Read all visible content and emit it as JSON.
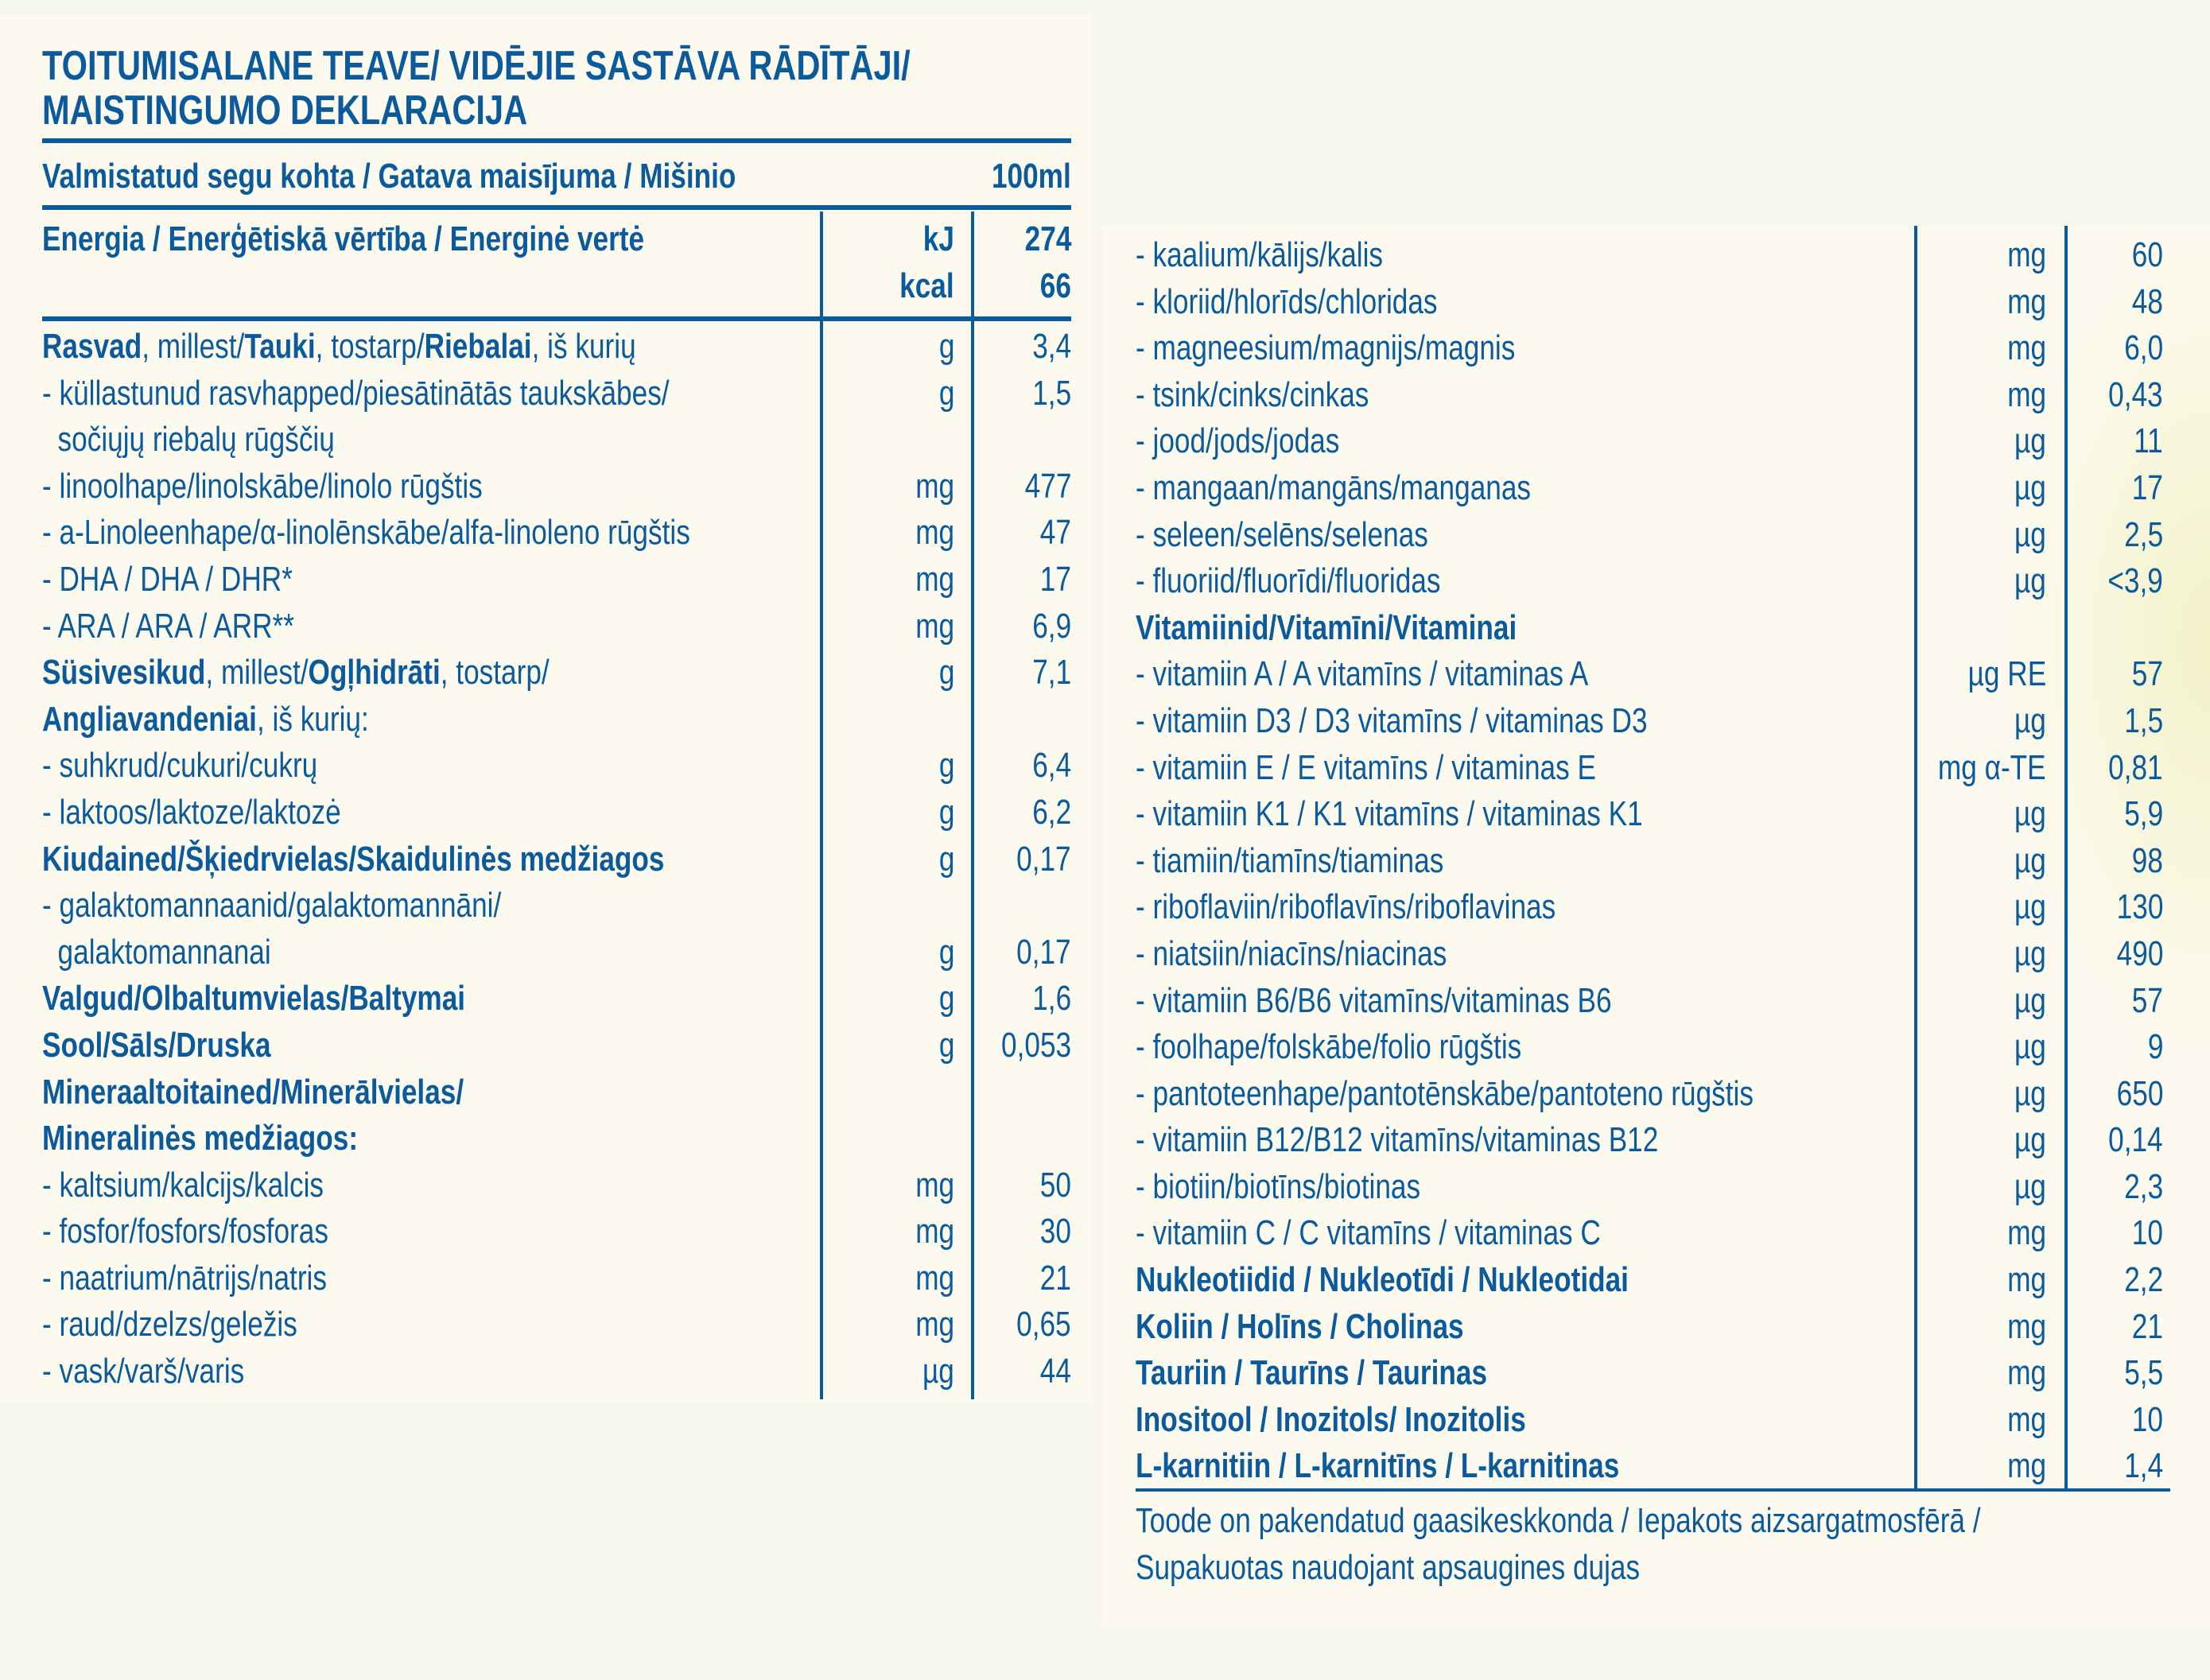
{
  "title": {
    "line1": "TOITUMISALANE TEAVE/ VIDĒJIE SASTĀVA RĀDĪTĀJI/",
    "line2": "MAISTINGUMO DEKLARACIJA"
  },
  "basis": {
    "label": "Valmistatud segu kohta / Gatava maisījuma / Mišinio",
    "value": "100ml"
  },
  "energy": {
    "label": "Energia / Enerģētiskā vērtība / Energinė vertė",
    "rows": [
      {
        "unit": "kJ",
        "value": "274"
      },
      {
        "unit": "kcal",
        "value": "66"
      }
    ]
  },
  "left_rows": [
    {
      "parts": [
        {
          "t": "Rasvad",
          "b": true
        },
        {
          "t": ", millest/"
        },
        {
          "t": "Tauki",
          "b": true
        },
        {
          "t": ", tostarp/"
        },
        {
          "t": "Riebalai",
          "b": true
        },
        {
          "t": ", iš kurių"
        }
      ],
      "unit": "g",
      "value": "3,4"
    },
    {
      "parts": [
        {
          "t": "- küllastunud rasvhapped/piesātinātās taukskābes/"
        }
      ],
      "unit": "g",
      "value": "1,5"
    },
    {
      "parts": [
        {
          "t": "  sočiųjų riebalų rūgščių"
        }
      ],
      "unit": "",
      "value": ""
    },
    {
      "parts": [
        {
          "t": "- linoolhape/linolskābe/linolo rūgštis"
        }
      ],
      "unit": "mg",
      "value": "477"
    },
    {
      "parts": [
        {
          "t": "- a-Linoleenhape/α-linolēnskābe/alfa-linoleno rūgštis"
        }
      ],
      "unit": "mg",
      "value": "47"
    },
    {
      "parts": [
        {
          "t": "- DHA / DHA / DHR*"
        }
      ],
      "unit": "mg",
      "value": "17"
    },
    {
      "parts": [
        {
          "t": "- ARA / ARA / ARR**"
        }
      ],
      "unit": "mg",
      "value": "6,9"
    },
    {
      "parts": [
        {
          "t": "Süsivesikud",
          "b": true
        },
        {
          "t": ", millest/"
        },
        {
          "t": "Ogļhidrāti",
          "b": true
        },
        {
          "t": ", tostarp/"
        }
      ],
      "unit": "g",
      "value": "7,1"
    },
    {
      "parts": [
        {
          "t": "Angliavandeniai",
          "b": true
        },
        {
          "t": ", iš kurių:"
        }
      ],
      "unit": "",
      "value": ""
    },
    {
      "parts": [
        {
          "t": "- suhkrud/cukuri/cukrų"
        }
      ],
      "unit": "g",
      "value": "6,4"
    },
    {
      "parts": [
        {
          "t": "- laktoos/laktoze/laktozė"
        }
      ],
      "unit": "g",
      "value": "6,2"
    },
    {
      "parts": [
        {
          "t": "Kiudained/Šķiedrvielas/Skaidulinės medžiagos",
          "b": true
        }
      ],
      "unit": "g",
      "value": "0,17"
    },
    {
      "parts": [
        {
          "t": "- galaktomannaanid/galaktomannāni/"
        }
      ],
      "unit": "",
      "value": ""
    },
    {
      "parts": [
        {
          "t": "  galaktomannanai"
        }
      ],
      "unit": "g",
      "value": "0,17"
    },
    {
      "parts": [
        {
          "t": "Valgud/Olbaltumvielas/Baltymai",
          "b": true
        }
      ],
      "unit": "g",
      "value": "1,6"
    },
    {
      "parts": [
        {
          "t": "Sool/Sāls/Druska",
          "b": true
        }
      ],
      "unit": "g",
      "value": "0,053"
    },
    {
      "parts": [
        {
          "t": "Mineraaltoitained/Minerālvielas/",
          "b": true
        }
      ],
      "unit": "",
      "value": ""
    },
    {
      "parts": [
        {
          "t": "Mineralinės medžiagos:",
          "b": true
        }
      ],
      "unit": "",
      "value": ""
    },
    {
      "parts": [
        {
          "t": "- kaltsium/kalcijs/kalcis"
        }
      ],
      "unit": "mg",
      "value": "50"
    },
    {
      "parts": [
        {
          "t": "- fosfor/fosfors/fosforas"
        }
      ],
      "unit": "mg",
      "value": "30"
    },
    {
      "parts": [
        {
          "t": "- naatrium/nātrijs/natris"
        }
      ],
      "unit": "mg",
      "value": "21"
    },
    {
      "parts": [
        {
          "t": "- raud/dzelzs/geležis"
        }
      ],
      "unit": "mg",
      "value": "0,65"
    },
    {
      "parts": [
        {
          "t": "- vask/varš/varis"
        }
      ],
      "unit": "µg",
      "value": "44"
    }
  ],
  "right_rows": [
    {
      "parts": [
        {
          "t": "- kaalium/kālijs/kalis"
        }
      ],
      "unit": "mg",
      "value": "60"
    },
    {
      "parts": [
        {
          "t": "- kloriid/hlorīds/chloridas"
        }
      ],
      "unit": "mg",
      "value": "48"
    },
    {
      "parts": [
        {
          "t": "- magneesium/magnijs/magnis"
        }
      ],
      "unit": "mg",
      "value": "6,0"
    },
    {
      "parts": [
        {
          "t": "- tsink/cinks/cinkas"
        }
      ],
      "unit": "mg",
      "value": "0,43"
    },
    {
      "parts": [
        {
          "t": "- jood/jods/jodas"
        }
      ],
      "unit": "µg",
      "value": "11"
    },
    {
      "parts": [
        {
          "t": "- mangaan/mangāns/manganas"
        }
      ],
      "unit": "µg",
      "value": "17"
    },
    {
      "parts": [
        {
          "t": "- seleen/selēns/selenas"
        }
      ],
      "unit": "µg",
      "value": "2,5"
    },
    {
      "parts": [
        {
          "t": "- fluoriid/fluorīdi/fluoridas"
        }
      ],
      "unit": "µg",
      "value": "<3,9"
    },
    {
      "parts": [
        {
          "t": "Vitamiinid/Vitamīni/Vitaminai",
          "b": true
        }
      ],
      "unit": "",
      "value": ""
    },
    {
      "parts": [
        {
          "t": "- vitamiin A / A vitamīns / vitaminas A"
        }
      ],
      "unit": "µg RE",
      "value": "57"
    },
    {
      "parts": [
        {
          "t": "- vitamiin D3 / D3 vitamīns / vitaminas D3"
        }
      ],
      "unit": "µg",
      "value": "1,5"
    },
    {
      "parts": [
        {
          "t": "- vitamiin E / E vitamīns / vitaminas E"
        }
      ],
      "unit": "mg α-TE",
      "value": "0,81"
    },
    {
      "parts": [
        {
          "t": "- vitamiin K1 / K1 vitamīns / vitaminas K1"
        }
      ],
      "unit": "µg",
      "value": "5,9"
    },
    {
      "parts": [
        {
          "t": "- tiamiin/tiamīns/tiaminas"
        }
      ],
      "unit": "µg",
      "value": "98"
    },
    {
      "parts": [
        {
          "t": "- riboflaviin/riboflavīns/riboflavinas"
        }
      ],
      "unit": "µg",
      "value": "130"
    },
    {
      "parts": [
        {
          "t": "- niatsiin/niacīns/niacinas"
        }
      ],
      "unit": "µg",
      "value": "490"
    },
    {
      "parts": [
        {
          "t": "- vitamiin B6/B6 vitamīns/vitaminas B6"
        }
      ],
      "unit": "µg",
      "value": "57"
    },
    {
      "parts": [
        {
          "t": "- foolhape/folskābe/folio rūgštis"
        }
      ],
      "unit": "µg",
      "value": "9"
    },
    {
      "parts": [
        {
          "t": "- pantoteenhape/pantotēnskābe/pantoteno rūgštis"
        }
      ],
      "unit": "µg",
      "value": "650"
    },
    {
      "parts": [
        {
          "t": "- vitamiin B12/B12 vitamīns/vitaminas B12"
        }
      ],
      "unit": "µg",
      "value": "0,14"
    },
    {
      "parts": [
        {
          "t": "- biotiin/biotīns/biotinas"
        }
      ],
      "unit": "µg",
      "value": "2,3"
    },
    {
      "parts": [
        {
          "t": "- vitamiin C / C vitamīns / vitaminas C"
        }
      ],
      "unit": "mg",
      "value": "10"
    },
    {
      "parts": [
        {
          "t": "Nukleotiidid / Nukleotīdi / Nukleotidai",
          "b": true
        }
      ],
      "unit": "mg",
      "value": "2,2"
    },
    {
      "parts": [
        {
          "t": "Koliin / Holīns / Cholinas",
          "b": true
        }
      ],
      "unit": "mg",
      "value": "21"
    },
    {
      "parts": [
        {
          "t": "Tauriin / Taurīns / Taurinas",
          "b": true
        }
      ],
      "unit": "mg",
      "value": "5,5"
    },
    {
      "parts": [
        {
          "t": "Inositool / Inozitols/ Inozitolis",
          "b": true
        }
      ],
      "unit": "mg",
      "value": "10"
    },
    {
      "parts": [
        {
          "t": "L-karnitiin / L-karnitīns / L-karnitinas",
          "b": true
        }
      ],
      "unit": "mg",
      "value": "1,4"
    }
  ],
  "footer": {
    "line1": "Toode on pakendatud gaasikeskkonda / Iepakots aizsargatmosfērā /",
    "line2": "Supakuotas naudojant apsaugines dujas"
  },
  "colors": {
    "text": "#0a5a9c",
    "panel": "#fcfaef",
    "background": "#f8f7ee"
  }
}
